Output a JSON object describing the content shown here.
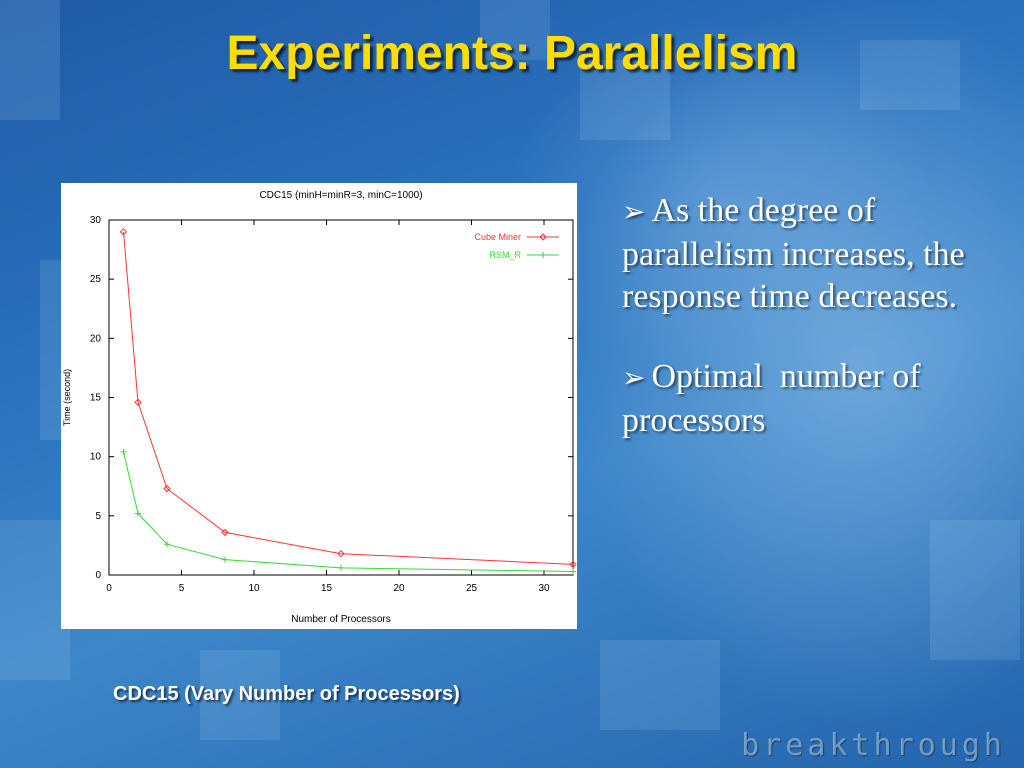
{
  "slide": {
    "title": "Experiments: Parallelism",
    "bullets": [
      {
        "arrow": "➢",
        "text": "As the degree of parallelism increases, the response time decreases."
      },
      {
        "arrow": "➢",
        "text": "Optimal  number of processors"
      }
    ],
    "caption": "CDC15 (Vary Number of Processors)",
    "brand": "breakthrough",
    "colors": {
      "title": "#ffdd00",
      "background": "#2a6fb8"
    }
  },
  "chart_data": {
    "type": "line",
    "title": "CDC15 (minH=minR=3, minC=1000)",
    "xlabel": "Number of Processors",
    "ylabel": "Time (second)",
    "xlim": [
      0,
      32
    ],
    "ylim": [
      0,
      30
    ],
    "xticks": [
      0,
      5,
      10,
      15,
      20,
      25,
      30
    ],
    "yticks": [
      0,
      5,
      10,
      15,
      20,
      25,
      30
    ],
    "legend_position": "top-right",
    "grid": false,
    "series": [
      {
        "name": "Cube Miner",
        "color": "#ff3333",
        "marker": "diamond",
        "x": [
          1,
          2,
          4,
          8,
          16,
          32
        ],
        "y": [
          29.0,
          14.6,
          7.3,
          3.6,
          1.8,
          0.9
        ]
      },
      {
        "name": "RSM_R",
        "color": "#33dd33",
        "marker": "plus",
        "x": [
          1,
          2,
          4,
          8,
          16,
          32
        ],
        "y": [
          10.4,
          5.2,
          2.6,
          1.3,
          0.6,
          0.3
        ]
      }
    ]
  }
}
